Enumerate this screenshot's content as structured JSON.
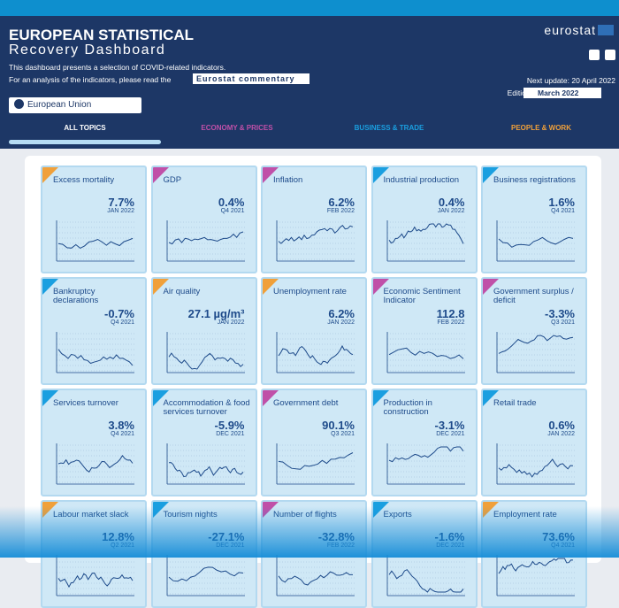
{
  "header": {
    "title": "EUROPEAN STATISTICAL",
    "subtitle": "Recovery Dashboard",
    "intro": "This dashboard presents a selection of COVID-related indicators.",
    "intro2": "For an analysis of the indicators, please read the",
    "commentary": "Eurostat commentary",
    "logo": "eurostat",
    "next_update": "Next update: 20 April 2022",
    "edition_label": "Edition:",
    "edition": "March 2022",
    "region": "European Union"
  },
  "tabs": [
    {
      "label": "ALL TOPICS",
      "color": "#ffffff"
    },
    {
      "label": "ECONOMY & PRICES",
      "color": "#c050a8"
    },
    {
      "label": "BUSINESS & TRADE",
      "color": "#1a9fe0"
    },
    {
      "label": "PEOPLE & WORK",
      "color": "#f0a03a"
    }
  ],
  "tiles": [
    {
      "title": "Excess mortality",
      "value": "7.7%",
      "date": "JAN 2022",
      "color": "#f0a03a"
    },
    {
      "title": "GDP",
      "value": "0.4%",
      "date": "Q4 2021",
      "color": "#c050a8"
    },
    {
      "title": "Inflation",
      "value": "6.2%",
      "date": "FEB 2022",
      "color": "#c050a8"
    },
    {
      "title": "Industrial production",
      "value": "0.4%",
      "date": "JAN 2022",
      "color": "#1a9fe0"
    },
    {
      "title": "Business registrations",
      "value": "1.6%",
      "date": "Q4 2021",
      "color": "#1a9fe0"
    },
    {
      "title": "Bankruptcy declarations",
      "value": "-0.7%",
      "date": "Q4 2021",
      "color": "#1a9fe0"
    },
    {
      "title": "Air quality",
      "value": "27.1 µg/m³",
      "date": "JAN 2022",
      "color": "#f0a03a"
    },
    {
      "title": "Unemployment rate",
      "value": "6.2%",
      "date": "JAN 2022",
      "color": "#f0a03a"
    },
    {
      "title": "Economic Sentiment Indicator",
      "value": "112.8",
      "date": "FEB 2022",
      "color": "#c050a8"
    },
    {
      "title": "Government surplus / deficit",
      "value": "-3.3%",
      "date": "Q3 2021",
      "color": "#c050a8"
    },
    {
      "title": "Services turnover",
      "value": "3.8%",
      "date": "Q4 2021",
      "color": "#1a9fe0"
    },
    {
      "title": "Accommodation & food services turnover",
      "value": "-5.9%",
      "date": "DEC 2021",
      "color": "#1a9fe0"
    },
    {
      "title": "Government debt",
      "value": "90.1%",
      "date": "Q3 2021",
      "color": "#c050a8"
    },
    {
      "title": "Production in construction",
      "value": "-3.1%",
      "date": "DEC 2021",
      "color": "#1a9fe0"
    },
    {
      "title": "Retail trade",
      "value": "0.6%",
      "date": "JAN 2022",
      "color": "#1a9fe0"
    },
    {
      "title": "Labour market slack",
      "value": "12.8%",
      "date": "Q2 2021",
      "color": "#f0a03a"
    },
    {
      "title": "Tourism nights",
      "value": "-27.1%",
      "date": "DEC 2021",
      "color": "#1a9fe0"
    },
    {
      "title": "Number of flights",
      "value": "-32.8%",
      "date": "FEB 2022",
      "color": "#c050a8"
    },
    {
      "title": "Exports",
      "value": "-1.6%",
      "date": "DEC 2021",
      "color": "#1a9fe0"
    },
    {
      "title": "Employment rate",
      "value": "73.6%",
      "date": "Q4 2021",
      "color": "#f0a03a"
    }
  ]
}
